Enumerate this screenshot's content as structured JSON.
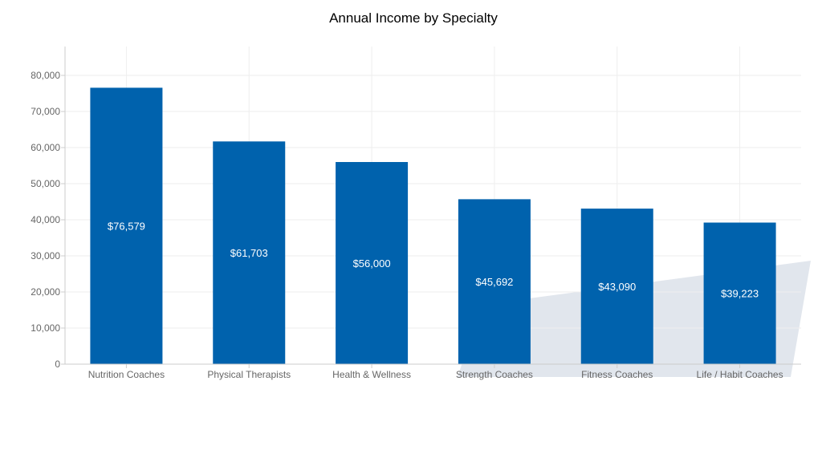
{
  "chart_data": {
    "type": "bar",
    "title": "Annual Income by Specialty",
    "xlabel": "",
    "ylabel": "",
    "categories": [
      "Nutrition Coaches",
      "Physical Therapists",
      "Health & Wellness",
      "Strength Coaches",
      "Fitness Coaches",
      "Life / Habit Coaches"
    ],
    "values": [
      76579,
      61703,
      56000,
      45692,
      43090,
      39223
    ],
    "data_labels": [
      "$76,579",
      "$61,703",
      "$56,000",
      "$45,692",
      "$43,090",
      "$39,223"
    ],
    "ylim": [
      0,
      88000
    ],
    "yticks": [
      0,
      10000,
      20000,
      30000,
      40000,
      50000,
      60000,
      70000,
      80000
    ],
    "ytick_labels": [
      "0",
      "10,000",
      "20,000",
      "30,000",
      "40,000",
      "50,000",
      "60,000",
      "70,000",
      "80,000"
    ],
    "grid": true,
    "legend": "none",
    "bar_color": "#0062ad"
  }
}
